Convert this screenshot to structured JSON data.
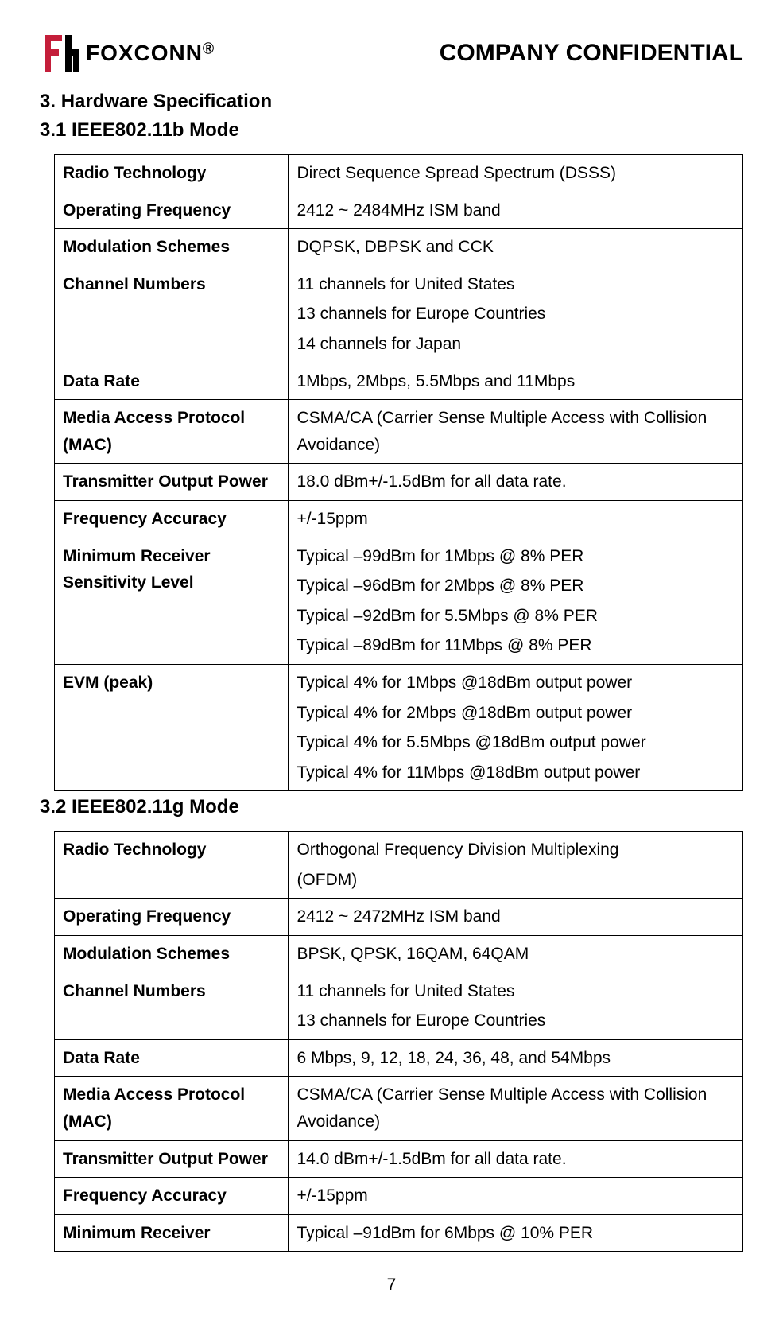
{
  "header": {
    "logo_text": "FOXCONN",
    "logo_trademark": "Ⓡ",
    "confidential": "COMPANY CONFIDENTIAL",
    "logo_accent_color": "#c41e3a",
    "logo_text_color": "#000000"
  },
  "section": {
    "number": "3.",
    "title": "Hardware Specification"
  },
  "subsections": [
    {
      "number": "3.1",
      "title": "IEEE802.11b Mode",
      "rows": [
        {
          "label": "Radio Technology",
          "value": [
            "Direct Sequence Spread Spectrum (DSSS)"
          ]
        },
        {
          "label": "Operating Frequency",
          "value": [
            "2412 ~ 2484MHz ISM band"
          ]
        },
        {
          "label": "Modulation Schemes",
          "value": [
            "DQPSK, DBPSK and CCK"
          ]
        },
        {
          "label": "Channel Numbers",
          "value": [
            "11 channels for United States",
            "13 channels for Europe Countries",
            "14 channels for Japan"
          ]
        },
        {
          "label": "Data Rate",
          "value": [
            "1Mbps, 2Mbps, 5.5Mbps and 11Mbps"
          ]
        },
        {
          "label": "Media Access Protocol (MAC)",
          "value": [
            "CSMA/CA (Carrier Sense Multiple Access with Collision Avoidance)"
          ]
        },
        {
          "label": "Transmitter Output Power",
          "value": [
            "18.0 dBm+/-1.5dBm for all data rate."
          ]
        },
        {
          "label": "Frequency Accuracy",
          "value": [
            "+/-15ppm"
          ]
        },
        {
          "label": "Minimum Receiver Sensitivity Level",
          "value": [
            "Typical –99dBm for 1Mbps @ 8% PER",
            "Typical –96dBm for 2Mbps @ 8% PER",
            "Typical –92dBm for 5.5Mbps @ 8% PER",
            "Typical –89dBm for 11Mbps @ 8% PER"
          ]
        },
        {
          "label": "EVM (peak)",
          "value": [
            "Typical 4% for 1Mbps @18dBm output power",
            "Typical 4% for 2Mbps @18dBm output power",
            "Typical 4% for 5.5Mbps @18dBm output power",
            "Typical 4% for 11Mbps @18dBm output power"
          ]
        }
      ]
    },
    {
      "number": "3.2",
      "title": "IEEE802.11g Mode",
      "rows": [
        {
          "label": "Radio Technology",
          "value": [
            "Orthogonal Frequency Division Multiplexing",
            "(OFDM)"
          ]
        },
        {
          "label": "Operating Frequency",
          "value": [
            "2412 ~ 2472MHz ISM band"
          ]
        },
        {
          "label": "Modulation Schemes",
          "value": [
            "BPSK, QPSK, 16QAM, 64QAM"
          ]
        },
        {
          "label": "Channel Numbers",
          "value": [
            "11 channels for United States",
            "13 channels for Europe Countries"
          ]
        },
        {
          "label": "Data Rate",
          "value": [
            "6 Mbps, 9, 12, 18, 24, 36, 48, and 54Mbps"
          ]
        },
        {
          "label": "Media Access Protocol (MAC)",
          "value": [
            "CSMA/CA (Carrier Sense Multiple Access with Collision Avoidance)"
          ]
        },
        {
          "label": "Transmitter Output Power",
          "value": [
            "14.0 dBm+/-1.5dBm for all data rate."
          ]
        },
        {
          "label": "Frequency Accuracy",
          "value": [
            "+/-15ppm"
          ]
        },
        {
          "label": "Minimum Receiver",
          "value": [
            "Typical –91dBm for 6Mbps @ 10% PER"
          ]
        }
      ]
    }
  ],
  "page_number": "7",
  "colors": {
    "background": "#ffffff",
    "text": "#000000",
    "border": "#000000"
  },
  "typography": {
    "base_family": "Arial",
    "title_size_pt": 24,
    "body_size_pt": 21,
    "confidential_size_pt": 30
  }
}
